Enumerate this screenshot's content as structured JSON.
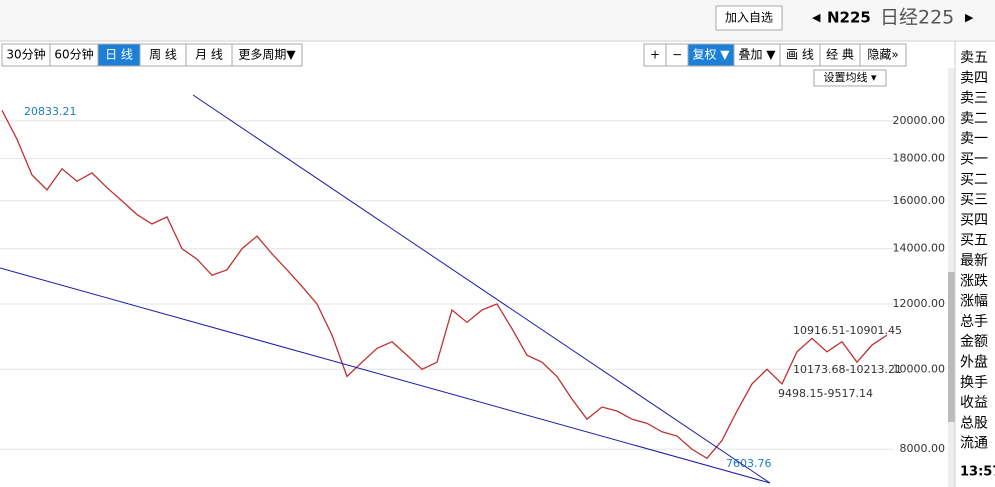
{
  "header": {
    "add_button": "加入自选",
    "symbol": "N225",
    "name": "日经225"
  },
  "toolbar": {
    "periods": [
      "30分钟",
      "60分钟",
      "日 线",
      "周 线",
      "月 线",
      "更多周期▼"
    ],
    "tools": [
      "+",
      "−",
      "复权 ▼",
      "叠加 ▼",
      "画 线",
      "经 典",
      "隐藏»"
    ],
    "ma_setting": "设置均线 ▾"
  },
  "side_panel": {
    "rows": [
      "卖五",
      "卖四",
      "卖三",
      "卖二",
      "卖一",
      "买一",
      "买二",
      "买三",
      "买四",
      "买五",
      "最新",
      "涨跌",
      "涨幅",
      "总手",
      "金额",
      "外盘",
      "换手",
      "收益",
      "总股",
      "流通"
    ],
    "time": "13:57"
  },
  "chart_data": {
    "type": "line",
    "color": "#c03030",
    "log_scale": true,
    "grid": true,
    "values": [
      20600,
      19000,
      17200,
      16500,
      17500,
      16900,
      17300,
      16600,
      16000,
      15400,
      15000,
      15300,
      14000,
      13600,
      13000,
      13200,
      14000,
      14500,
      13800,
      13200,
      12600,
      12000,
      11000,
      9800,
      10200,
      10600,
      10800,
      10400,
      10000,
      10200,
      11800,
      11400,
      11800,
      12000,
      11200,
      10400,
      10200,
      9800,
      9200,
      8700,
      9000,
      8900,
      8700,
      8600,
      8400,
      8300,
      8000,
      7800,
      8200,
      8900,
      9600,
      10000,
      9600,
      10500,
      10900,
      10500,
      10800,
      10200,
      10700,
      11000
    ],
    "ylim": [
      7200,
      21500
    ],
    "yticks": [
      {
        "value": 8000,
        "label": "8000.00"
      },
      {
        "value": 10000,
        "label": "10000.00"
      },
      {
        "value": 12000,
        "label": "12000.00"
      },
      {
        "value": 14000,
        "label": "14000.00"
      },
      {
        "value": 16000,
        "label": "16000.00"
      },
      {
        "value": 18000,
        "label": "18000.00"
      },
      {
        "value": 20000,
        "label": "20000.00"
      }
    ],
    "annotations": [
      "20833.21",
      "7603.76",
      "10916.51-10901.45",
      "10173.68-10213.21",
      "9498.15-9517.14"
    ]
  }
}
